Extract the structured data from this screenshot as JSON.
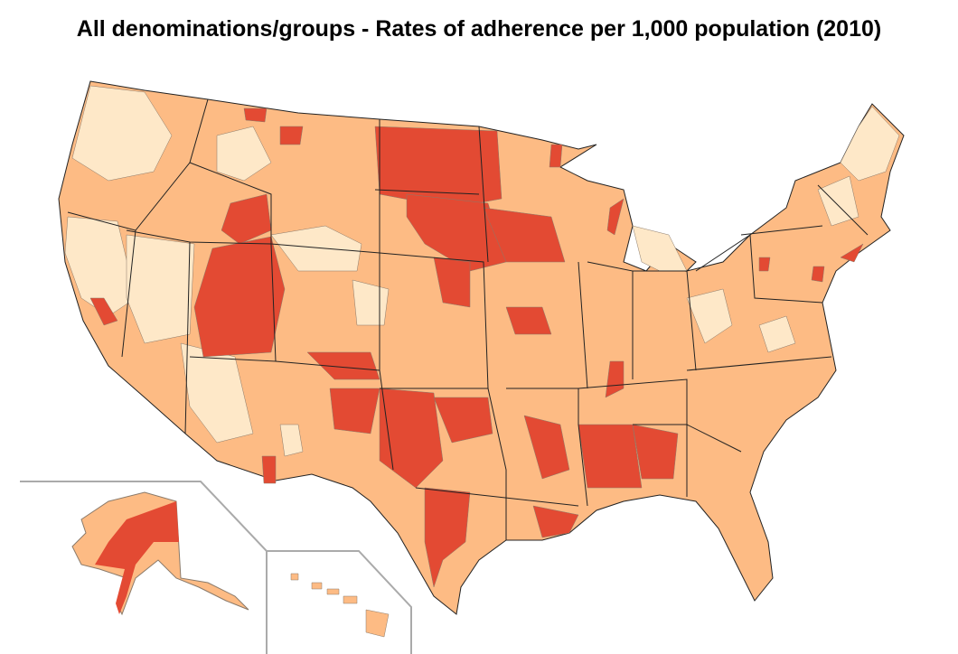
{
  "title": "All denominations/groups - Rates of adherence per 1,000 population (2010)",
  "map": {
    "type": "choropleth",
    "region": "United States counties",
    "insets": [
      "Alaska",
      "Hawaii"
    ],
    "colors": {
      "low": "#fee8c8",
      "medium": "#fdbb84",
      "high": "#e34a33",
      "county_border": "#8a7a6a",
      "state_border": "#222222",
      "inset_frame": "#aaaaaa"
    }
  }
}
